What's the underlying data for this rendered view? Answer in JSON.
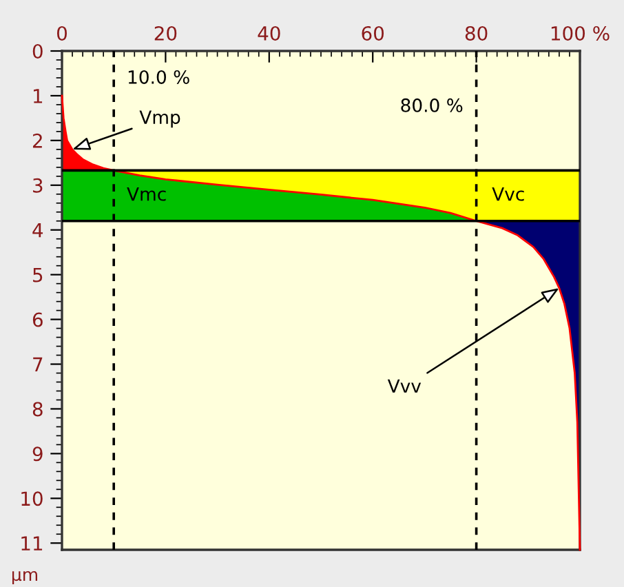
{
  "chart_data": {
    "type": "line",
    "orientation": "horizontal",
    "ylabel": "µm",
    "xlim": [
      0,
      100
    ],
    "xticks": [
      0,
      20,
      40,
      60,
      80,
      {
        "value": 100,
        "label": "100 %"
      }
    ],
    "ylim": [
      11.15,
      0
    ],
    "yticks": [
      0,
      1,
      2,
      3,
      4,
      5,
      6,
      7,
      8,
      9,
      10,
      11
    ],
    "grid": false,
    "legend": false,
    "series": [
      {
        "type": "area",
        "color": "#ff0000",
        "x": [
          1.0,
          1.5,
          1.8,
          2.0,
          2.2,
          2.32,
          2.42,
          2.54,
          2.62,
          2.67,
          2.67
        ],
        "values": [
          0,
          0.3,
          0.7,
          1,
          2,
          3,
          4,
          6,
          8,
          10,
          0
        ]
      },
      {
        "type": "area",
        "color": "#00c000",
        "x": [
          2.67,
          2.67,
          2.78,
          2.87,
          2.99,
          3.1,
          3.21,
          3.33,
          3.5,
          3.62,
          3.8,
          3.8
        ],
        "values": [
          0,
          10,
          15,
          20,
          30,
          40,
          50,
          60,
          70,
          75,
          80,
          0
        ]
      },
      {
        "type": "area",
        "color": "#000070",
        "x": [
          3.8,
          3.8,
          3.96,
          4.12,
          4.38,
          4.65,
          5.05,
          5.3,
          5.65,
          6.2,
          7.2,
          8.3,
          11.15
        ],
        "values": [
          100,
          80,
          85,
          88,
          91,
          93,
          95,
          96,
          97,
          98,
          99,
          99.5,
          100
        ]
      },
      {
        "color": "#ff0000",
        "x": [
          1.0,
          1.5,
          1.8,
          2.0,
          2.2,
          2.32,
          2.42,
          2.54,
          2.62,
          2.67,
          2.78,
          2.87,
          2.99,
          3.1,
          3.21,
          3.33,
          3.5,
          3.62,
          3.8,
          3.96,
          4.12,
          4.38,
          4.65,
          5.05,
          5.3,
          5.65,
          6.2,
          7.2,
          8.3,
          11.15
        ],
        "values": [
          0,
          0.3,
          0.7,
          1,
          2,
          3,
          4,
          6,
          8,
          10,
          15,
          20,
          30,
          40,
          50,
          60,
          70,
          75,
          80,
          85,
          88,
          91,
          93,
          95,
          96,
          97,
          98,
          99,
          99.5,
          100
        ]
      }
    ],
    "bands": [
      {
        "axis": "y",
        "from": 2.67,
        "to": 3.8,
        "color": "#ffff00"
      }
    ],
    "ref_lines": [
      {
        "axis": "x",
        "value": 10,
        "label": "10.0 %",
        "line_style": "dashed",
        "color": "#000000"
      },
      {
        "axis": "x",
        "value": 80,
        "label": "80.0 %",
        "line_style": "dashed",
        "color": "#000000"
      },
      {
        "axis": "y",
        "value": 2.67,
        "line_style": "solid",
        "color": "#000000"
      },
      {
        "axis": "y",
        "value": 3.8,
        "line_style": "solid",
        "color": "#000000"
      }
    ],
    "annotations": [
      {
        "text": "Vmp",
        "x": 2,
        "y": 2.2
      },
      "Vmc",
      "Vvc",
      {
        "text": "Vvv",
        "x": 96,
        "y": 5.3
      }
    ]
  }
}
